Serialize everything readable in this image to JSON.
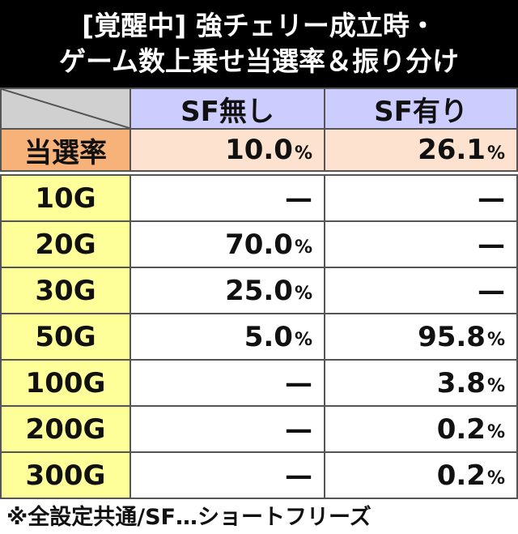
{
  "header": {
    "title_lines": [
      "[覚醒中] 強チェリー成立時・",
      "ゲーム数上乗せ当選率＆振り分け"
    ]
  },
  "table": {
    "columns": [
      "SF無し",
      "SF有り"
    ],
    "summary": {
      "label": "当選率",
      "cells": [
        {
          "value": "10.0",
          "unit": "%"
        },
        {
          "value": "26.1",
          "unit": "%"
        }
      ]
    },
    "rows": [
      {
        "label": "10G",
        "cells": [
          {
            "value": "—"
          },
          {
            "value": "—"
          }
        ]
      },
      {
        "label": "20G",
        "cells": [
          {
            "value": "70.0",
            "unit": "%"
          },
          {
            "value": "—"
          }
        ]
      },
      {
        "label": "30G",
        "cells": [
          {
            "value": "25.0",
            "unit": "%"
          },
          {
            "value": "—"
          }
        ]
      },
      {
        "label": "50G",
        "cells": [
          {
            "value": "5.0",
            "unit": "%"
          },
          {
            "value": "95.8",
            "unit": "%"
          }
        ]
      },
      {
        "label": "100G",
        "cells": [
          {
            "value": "—"
          },
          {
            "value": "3.8",
            "unit": "%"
          }
        ]
      },
      {
        "label": "200G",
        "cells": [
          {
            "value": "—"
          },
          {
            "value": "0.2",
            "unit": "%"
          }
        ]
      },
      {
        "label": "300G",
        "cells": [
          {
            "value": "—"
          },
          {
            "value": "0.2",
            "unit": "%"
          }
        ]
      }
    ]
  },
  "footer": {
    "note": "※全設定共通/SF…ショートフリーズ"
  }
}
